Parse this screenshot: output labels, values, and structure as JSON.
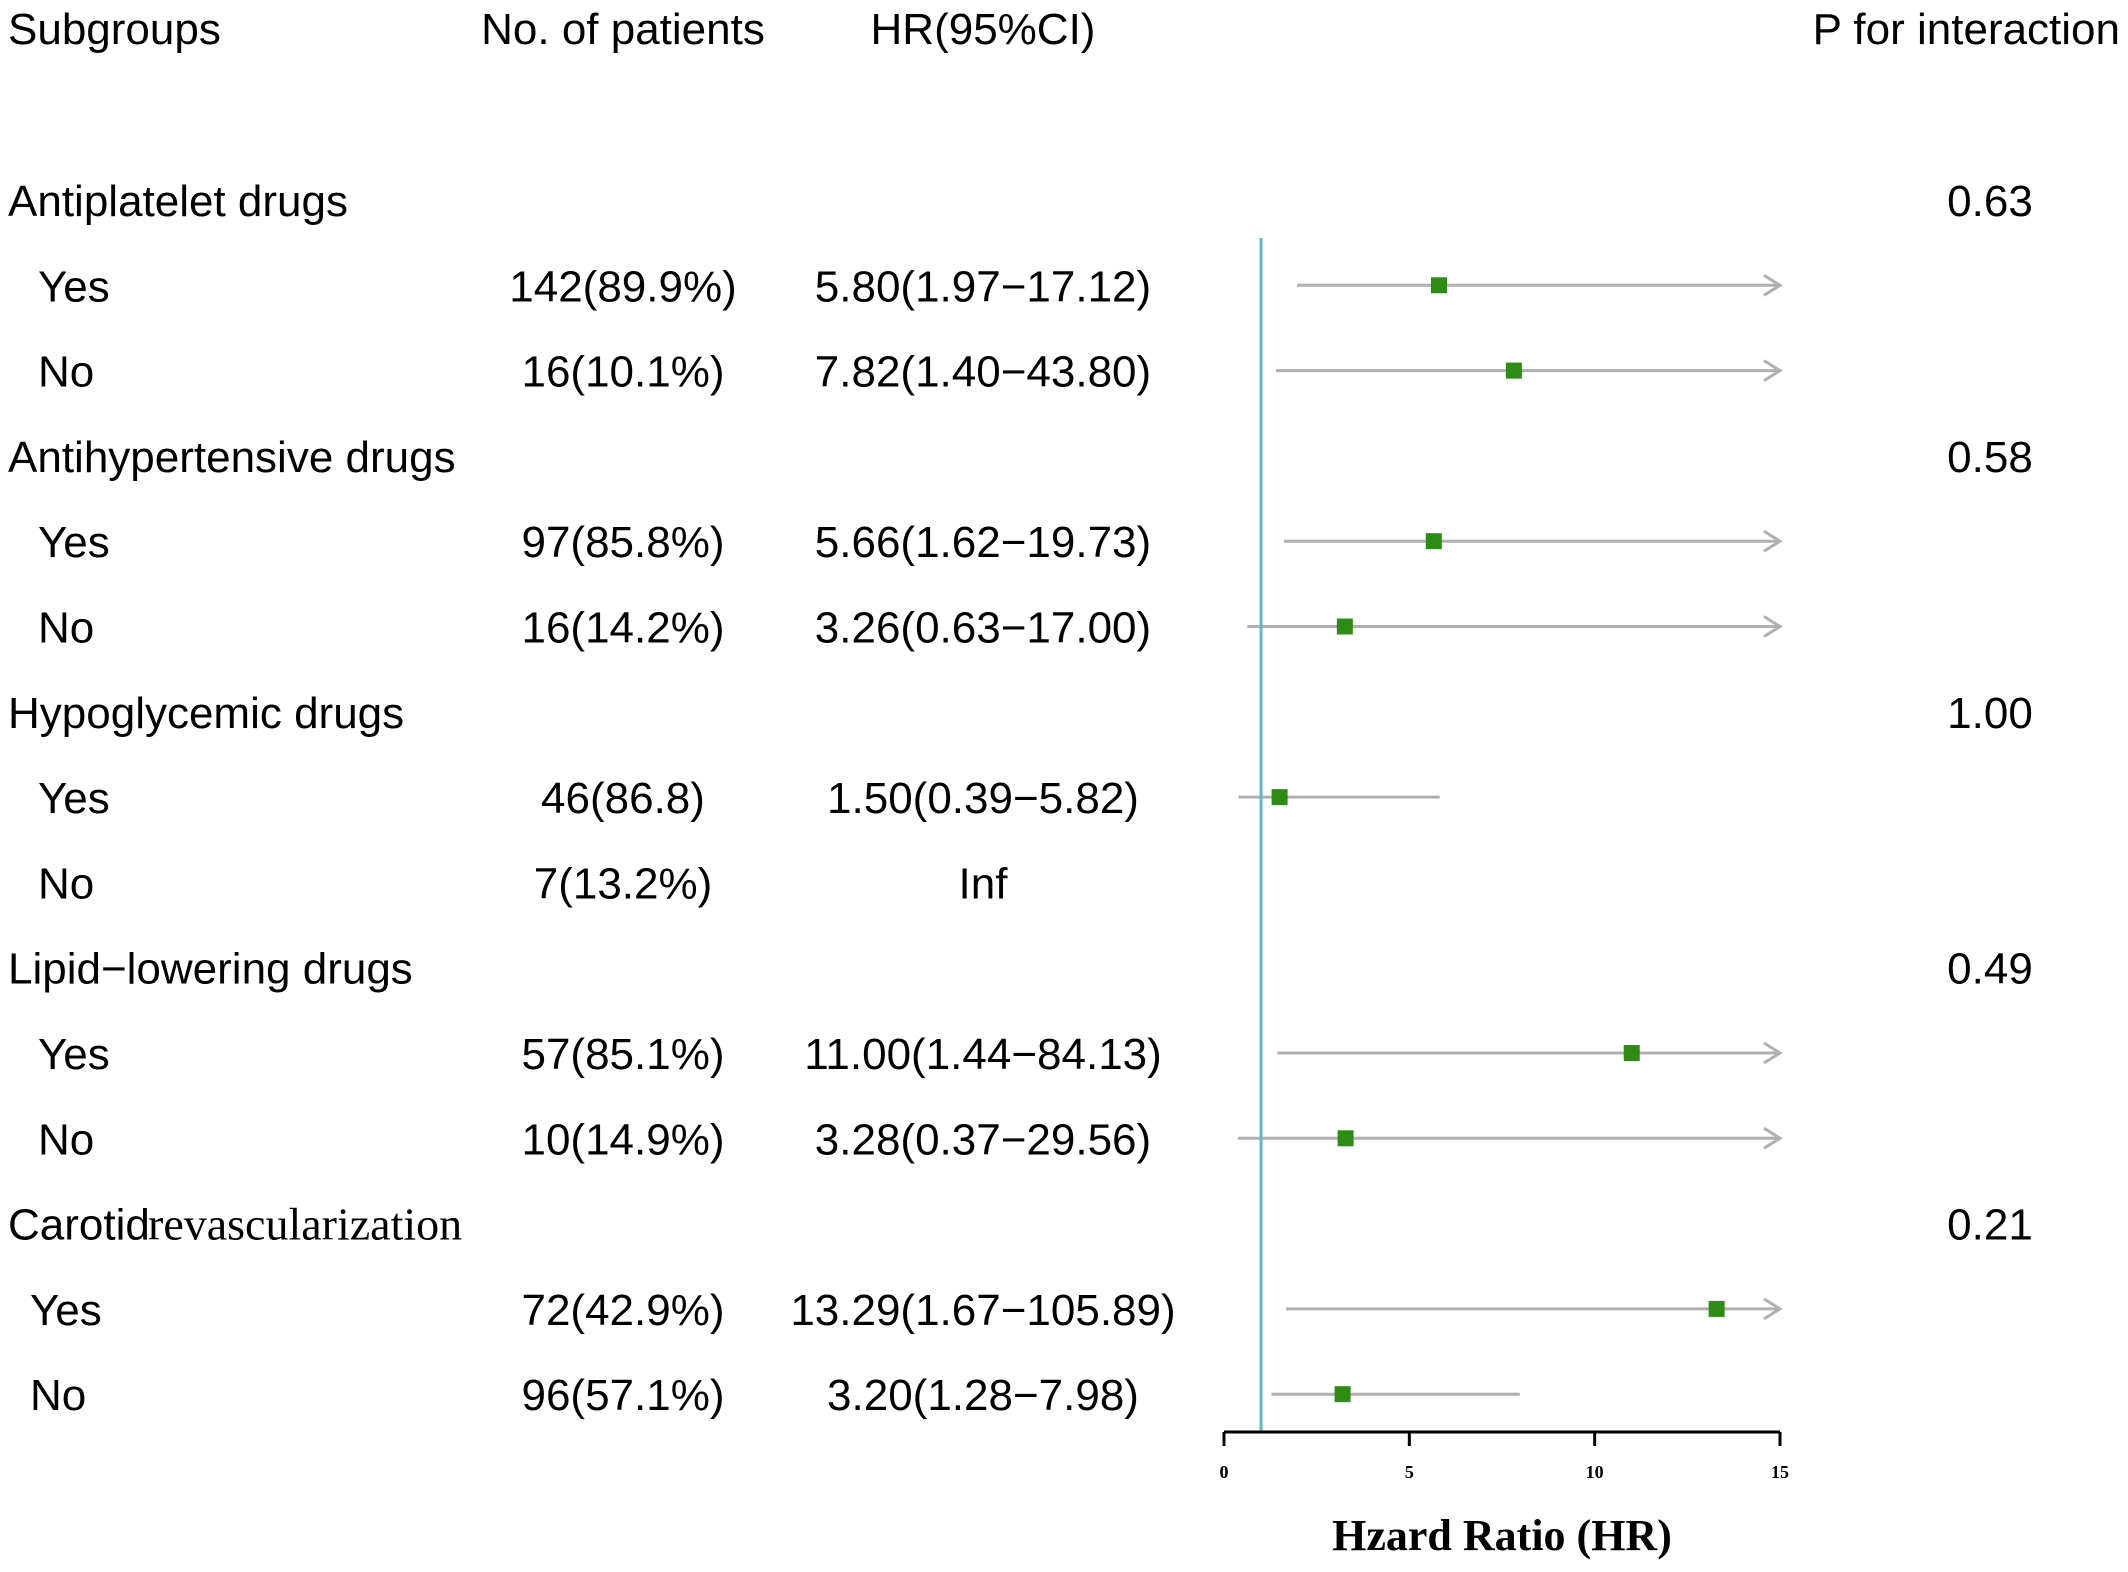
{
  "headers": {
    "subgroups": "Subgroups",
    "patients": "No. of patients",
    "hr": "HR(95%CI)",
    "p": "P for interaction"
  },
  "chart_data": {
    "type": "forest",
    "xlabel": "Hzard Ratio (HR)",
    "xlim": [
      0,
      15
    ],
    "xticks": [
      0,
      5,
      10,
      15
    ],
    "reference_line": 1,
    "colors": {
      "point": "#2e8b14",
      "ci": "#b0b0b0",
      "reference": "#62b8c4",
      "axis": "#000000"
    },
    "groups": [
      {
        "name": "Antiplatelet drugs",
        "p": "0.63",
        "rows": [
          {
            "label": "Yes",
            "n": "142(89.9%)",
            "hr_text": "5.80(1.97−17.12)",
            "hr": 5.8,
            "lo": 1.97,
            "hi": 17.12
          },
          {
            "label": "No",
            "n": "16(10.1%)",
            "hr_text": "7.82(1.40−43.80)",
            "hr": 7.82,
            "lo": 1.4,
            "hi": 43.8
          }
        ]
      },
      {
        "name": "Antihypertensive drugs",
        "p": "0.58",
        "rows": [
          {
            "label": "Yes",
            "n": "97(85.8%)",
            "hr_text": "5.66(1.62−19.73)",
            "hr": 5.66,
            "lo": 1.62,
            "hi": 19.73
          },
          {
            "label": "No",
            "n": "16(14.2%)",
            "hr_text": "3.26(0.63−17.00)",
            "hr": 3.26,
            "lo": 0.63,
            "hi": 17.0
          }
        ]
      },
      {
        "name": "Hypoglycemic drugs",
        "p": "1.00",
        "rows": [
          {
            "label": "Yes",
            "n": "46(86.8)",
            "hr_text": "1.50(0.39−5.82)",
            "hr": 1.5,
            "lo": 0.39,
            "hi": 5.82
          },
          {
            "label": "No",
            "n": "7(13.2%)",
            "hr_text": "Inf",
            "hr": null,
            "lo": null,
            "hi": null
          }
        ]
      },
      {
        "name": "Lipid−lowering drugs",
        "p": "0.49",
        "rows": [
          {
            "label": "Yes",
            "n": "57(85.1%)",
            "hr_text": "11.00(1.44−84.13)",
            "hr": 11.0,
            "lo": 1.44,
            "hi": 84.13
          },
          {
            "label": "No",
            "n": "10(14.9%)",
            "hr_text": "3.28(0.37−29.56)",
            "hr": 3.28,
            "lo": 0.37,
            "hi": 29.56
          }
        ]
      },
      {
        "name": "Carotid",
        "name_tail": "revascularization",
        "p": "0.21",
        "rows": [
          {
            "label": "Yes",
            "n": "72(42.9%)",
            "hr_text": "13.29(1.67−105.89)",
            "hr": 13.29,
            "lo": 1.67,
            "hi": 105.89
          },
          {
            "label": "No",
            "n": "96(57.1%)",
            "hr_text": "3.20(1.28−7.98)",
            "hr": 3.2,
            "lo": 1.28,
            "hi": 7.98
          }
        ]
      }
    ]
  }
}
